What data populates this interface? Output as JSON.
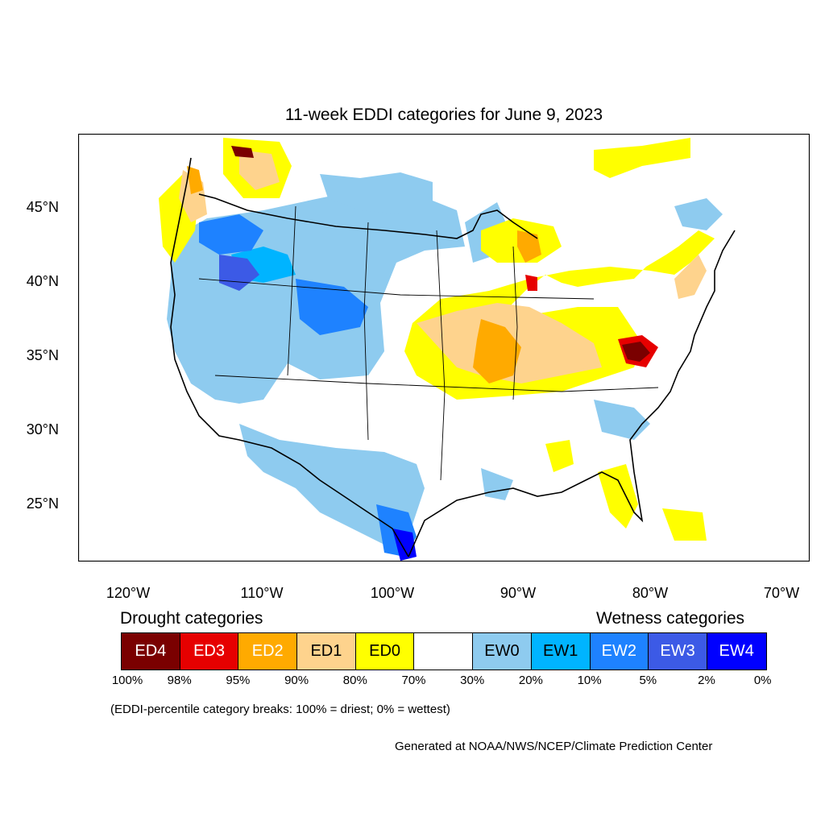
{
  "title": "11-week EDDI categories for June 9, 2023",
  "axes": {
    "lat_labels": [
      "45°N",
      "40°N",
      "35°N",
      "30°N",
      "25°N"
    ],
    "lon_labels": [
      "120°W",
      "110°W",
      "100°W",
      "90°W",
      "80°W",
      "70°W"
    ]
  },
  "legend": {
    "drought_heading": "Drought categories",
    "wetness_heading": "Wetness categories",
    "categories": [
      {
        "label": "ED4",
        "color": "#7a0000",
        "text_color": "#ffffff"
      },
      {
        "label": "ED3",
        "color": "#e60000",
        "text_color": "#ffffff"
      },
      {
        "label": "ED2",
        "color": "#ffaa00",
        "text_color": "#ffffff"
      },
      {
        "label": "ED1",
        "color": "#fed38d",
        "text_color": "#000000"
      },
      {
        "label": "ED0",
        "color": "#ffff00",
        "text_color": "#000000"
      },
      {
        "label": "",
        "color": "#ffffff",
        "text_color": "#000000"
      },
      {
        "label": "EW0",
        "color": "#8ecbef",
        "text_color": "#000000"
      },
      {
        "label": "EW1",
        "color": "#00b4ff",
        "text_color": "#000000"
      },
      {
        "label": "EW2",
        "color": "#1e82ff",
        "text_color": "#ffffff"
      },
      {
        "label": "EW3",
        "color": "#3c5ae6",
        "text_color": "#ffffff"
      },
      {
        "label": "EW4",
        "color": "#0000ff",
        "text_color": "#ffffff"
      }
    ],
    "breaks": [
      "100%",
      "98%",
      "95%",
      "90%",
      "80%",
      "70%",
      "30%",
      "20%",
      "10%",
      "5%",
      "2%",
      "0%"
    ]
  },
  "note": "(EDDI-percentile category breaks: 100% = driest; 0% = wettest)",
  "credit": "Generated at NOAA/NWS/NCEP/Climate Prediction Center"
}
